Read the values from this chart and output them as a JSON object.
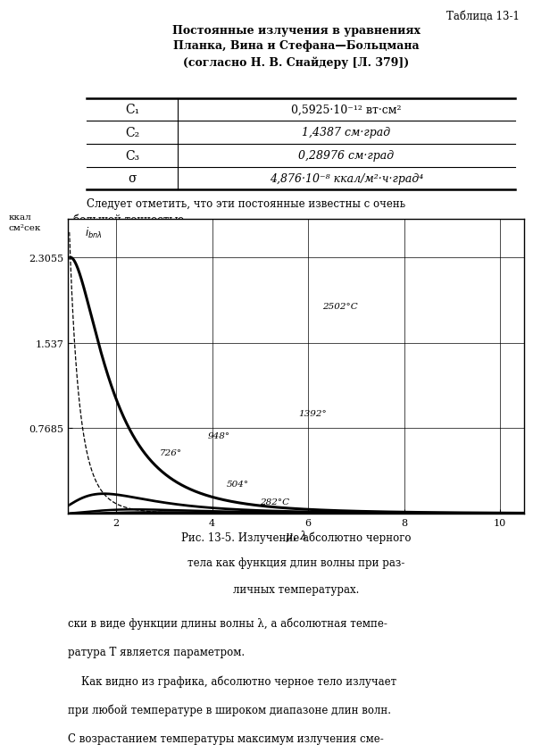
{
  "table_title_line1": "Постоянные излучения в уравнениях",
  "table_title_line2": "Планка, Вина и Стефана—Больцмана",
  "table_title_line3": "(согласно Н. В. Снайдеру [Л. 379])",
  "table_label": "Таблица 13-1",
  "rows": [
    {
      "symbol": "C₁",
      "value": "0,5925·10⁻¹² вт·см²"
    },
    {
      "symbol": "C₂",
      "value": "1,4387 см·град"
    },
    {
      "symbol": "C₃",
      "value": "0,28976 см·град"
    },
    {
      "symbol": "σ",
      "value": "4,876·10⁻⁸ ккал/м²·ч·град⁴"
    }
  ],
  "xlabel": "μ, λ",
  "yticks": [
    0.7685,
    1.537,
    2.3055
  ],
  "xticks": [
    2,
    4,
    6,
    8,
    10
  ],
  "temperatures": [
    282,
    504,
    726,
    948,
    1392,
    2502
  ],
  "caption_lines": [
    "Рис. 13-5. Излучение абсолютно черного",
    "тела как функция длин волны при раз-",
    "личных температурах."
  ],
  "bottom_texts": [
    "ски в виде функции длины волны λ, а абсолютная темпе-",
    "ратура T является параметром.",
    "    Как видно из графика, абсолютно черное тело излучает",
    "при любой температуре в широком диапазоне длин волн.",
    "С возрастанием температуры максимум излучения сме-"
  ]
}
